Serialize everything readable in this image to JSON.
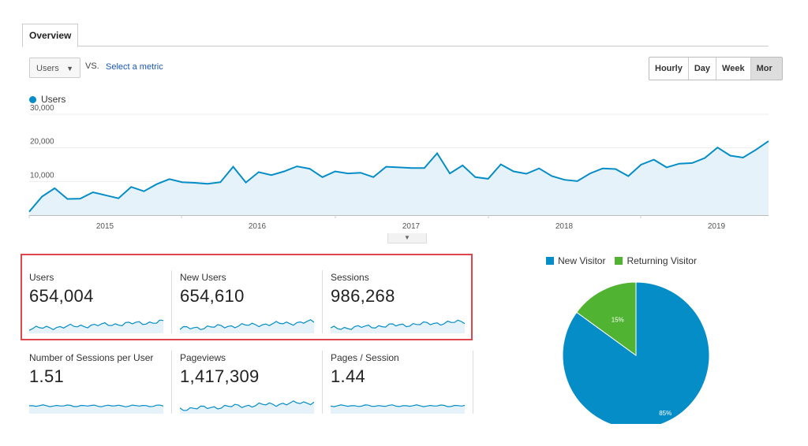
{
  "tabs": {
    "overview": "Overview"
  },
  "controls": {
    "metric": "Users",
    "vs": "VS.",
    "select_metric": "Select a metric",
    "ranges": [
      "Hourly",
      "Day",
      "Week",
      "Mor"
    ]
  },
  "legend": {
    "users": "Users"
  },
  "colors": {
    "users_line": "#058dc7",
    "area_fill": "#e5f2f9",
    "new_visitor": "#058dc7",
    "returning_visitor": "#50b432",
    "highlight_box": "#e0474c"
  },
  "chart_data": {
    "type": "area",
    "series": [
      {
        "name": "Users",
        "values": [
          1000,
          5500,
          8000,
          4800,
          4900,
          6800,
          5900,
          5000,
          8400,
          7100,
          9200,
          10700,
          9800,
          9600,
          9300,
          9800,
          14400,
          9700,
          12800,
          11900,
          13000,
          14500,
          13800,
          11300,
          13000,
          12400,
          12600,
          11300,
          14400,
          14200,
          14000,
          14000,
          18400,
          12400,
          14800,
          11300,
          10800,
          15100,
          13000,
          12300,
          13900,
          11600,
          10500,
          10100,
          12400,
          13900,
          13700,
          11600,
          15000,
          16500,
          14200,
          15300,
          15500,
          17000,
          20100,
          17700,
          17100,
          19400,
          22000
        ]
      }
    ],
    "x_ticks": [
      "2015",
      "2016",
      "2017",
      "2018",
      "2019"
    ],
    "y_ticks": [
      "30,000",
      "20,000",
      "10,000"
    ],
    "ylim": [
      0,
      30000
    ]
  },
  "cards": [
    {
      "label": "Users",
      "value": "654,004"
    },
    {
      "label": "New Users",
      "value": "654,610"
    },
    {
      "label": "Sessions",
      "value": "986,268"
    },
    {
      "label": "Number of Sessions per User",
      "value": "1.51"
    },
    {
      "label": "Pageviews",
      "value": "1,417,309"
    },
    {
      "label": "Pages / Session",
      "value": "1.44"
    }
  ],
  "pie": {
    "legend": [
      "New Visitor",
      "Returning Visitor"
    ],
    "slices": [
      {
        "name": "New Visitor",
        "value": 85,
        "label": "85%"
      },
      {
        "name": "Returning Visitor",
        "value": 15,
        "label": "15%"
      }
    ]
  }
}
